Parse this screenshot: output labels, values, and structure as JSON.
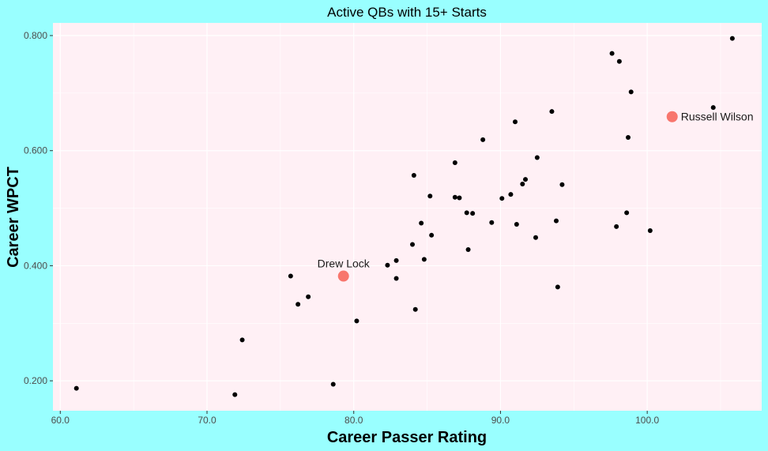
{
  "chart_data": {
    "type": "scatter",
    "title": "Active QBs with 15+ Starts",
    "xlabel": "Career Passer Rating",
    "ylabel": "Career WPCT",
    "xlim": [
      59.5,
      107.8
    ],
    "ylim": [
      0.148,
      0.822
    ],
    "x_ticks": [
      60,
      70,
      80,
      90,
      100
    ],
    "x_tick_labels": [
      "60.0",
      "70.0",
      "80.0",
      "90.0",
      "100.0"
    ],
    "y_ticks": [
      0.2,
      0.4,
      0.6,
      0.8
    ],
    "y_tick_labels": [
      "0.200",
      "0.400",
      "0.600",
      "0.800"
    ],
    "grid": true,
    "colors": {
      "panel": "#fff0f5",
      "background": "#99ffff",
      "point": "#000000",
      "highlight": "#f8766d",
      "grid": "#ffffff"
    },
    "points": [
      {
        "x": 61.1,
        "y": 0.187
      },
      {
        "x": 71.9,
        "y": 0.176
      },
      {
        "x": 72.4,
        "y": 0.271
      },
      {
        "x": 75.7,
        "y": 0.382
      },
      {
        "x": 76.2,
        "y": 0.333
      },
      {
        "x": 76.9,
        "y": 0.346
      },
      {
        "x": 78.6,
        "y": 0.194
      },
      {
        "x": 80.2,
        "y": 0.304
      },
      {
        "x": 82.3,
        "y": 0.401
      },
      {
        "x": 82.9,
        "y": 0.409
      },
      {
        "x": 82.9,
        "y": 0.378
      },
      {
        "x": 84.0,
        "y": 0.437
      },
      {
        "x": 84.1,
        "y": 0.557
      },
      {
        "x": 84.2,
        "y": 0.324
      },
      {
        "x": 84.6,
        "y": 0.474
      },
      {
        "x": 84.8,
        "y": 0.411
      },
      {
        "x": 85.2,
        "y": 0.521
      },
      {
        "x": 85.3,
        "y": 0.453
      },
      {
        "x": 86.9,
        "y": 0.579
      },
      {
        "x": 86.9,
        "y": 0.519
      },
      {
        "x": 87.2,
        "y": 0.518
      },
      {
        "x": 87.7,
        "y": 0.492
      },
      {
        "x": 87.8,
        "y": 0.428
      },
      {
        "x": 88.1,
        "y": 0.491
      },
      {
        "x": 88.8,
        "y": 0.619
      },
      {
        "x": 89.4,
        "y": 0.475
      },
      {
        "x": 90.1,
        "y": 0.517
      },
      {
        "x": 90.7,
        "y": 0.524
      },
      {
        "x": 91.0,
        "y": 0.65
      },
      {
        "x": 91.1,
        "y": 0.472
      },
      {
        "x": 91.5,
        "y": 0.542
      },
      {
        "x": 91.7,
        "y": 0.55
      },
      {
        "x": 92.4,
        "y": 0.449
      },
      {
        "x": 92.5,
        "y": 0.588
      },
      {
        "x": 93.5,
        "y": 0.668
      },
      {
        "x": 93.8,
        "y": 0.478
      },
      {
        "x": 93.9,
        "y": 0.363
      },
      {
        "x": 94.2,
        "y": 0.541
      },
      {
        "x": 97.6,
        "y": 0.769
      },
      {
        "x": 97.9,
        "y": 0.468
      },
      {
        "x": 98.1,
        "y": 0.755
      },
      {
        "x": 98.6,
        "y": 0.492
      },
      {
        "x": 98.7,
        "y": 0.623
      },
      {
        "x": 98.9,
        "y": 0.702
      },
      {
        "x": 100.2,
        "y": 0.461
      },
      {
        "x": 104.5,
        "y": 0.675
      },
      {
        "x": 105.8,
        "y": 0.795
      }
    ],
    "highlighted": [
      {
        "label": "Drew Lock",
        "x": 79.3,
        "y": 0.382,
        "label_position": "above"
      },
      {
        "label": "Russell Wilson",
        "x": 101.7,
        "y": 0.659,
        "label_position": "right"
      }
    ]
  }
}
